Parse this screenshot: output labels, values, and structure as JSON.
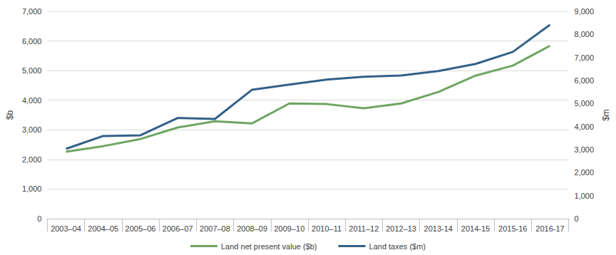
{
  "chart_data": {
    "type": "line",
    "categories": [
      "2003–04",
      "2004–05",
      "2005–06",
      "2006–07",
      "2007–08",
      "2008–09",
      "2009–10",
      "2010–11",
      "2011–12",
      "2012–13",
      "2013-14",
      "2014-15",
      "2015-16",
      "2016-17"
    ],
    "series": [
      {
        "name": "Land net present value ($b)",
        "color": "#6fa563",
        "axis": "y",
        "values": [
          2260,
          2450,
          2690,
          3080,
          3290,
          3220,
          3890,
          3870,
          3730,
          3890,
          4280,
          4830,
          5170,
          5840
        ]
      },
      {
        "name": "Land taxes ($m)",
        "color": "#336089",
        "axis": "y2",
        "values": [
          3030,
          3590,
          3620,
          4370,
          4330,
          5600,
          5820,
          6040,
          6160,
          6220,
          6410,
          6720,
          7240,
          8420
        ]
      }
    ],
    "ylabel": "$b",
    "y2label": "$m",
    "ylim": [
      0,
      7000
    ],
    "yticks": [
      0,
      {
        "value": 1000,
        "label": "1,000"
      },
      {
        "value": 2000,
        "label": "2,000"
      },
      {
        "value": 3000,
        "label": "3,000"
      },
      {
        "value": 4000,
        "label": "4,000"
      },
      {
        "value": 5000,
        "label": "5,000"
      },
      {
        "value": 6000,
        "label": "6,000"
      },
      {
        "value": 7000,
        "label": "7,000"
      }
    ],
    "y2lim": [
      0,
      9000
    ],
    "y2ticks": [
      0,
      {
        "value": 1000,
        "label": "1,000"
      },
      {
        "value": 2000,
        "label": "2,000"
      },
      {
        "value": 3000,
        "label": "3,000"
      },
      {
        "value": 4000,
        "label": "4,000"
      },
      {
        "value": 5000,
        "label": "5,000"
      },
      {
        "value": 6000,
        "label": "6,000"
      },
      {
        "value": 7000,
        "label": "7,000"
      },
      {
        "value": 8000,
        "label": "8,000"
      },
      {
        "value": 9000,
        "label": "9,000"
      }
    ],
    "grid": true,
    "legend": "bottom",
    "marker": "none"
  }
}
